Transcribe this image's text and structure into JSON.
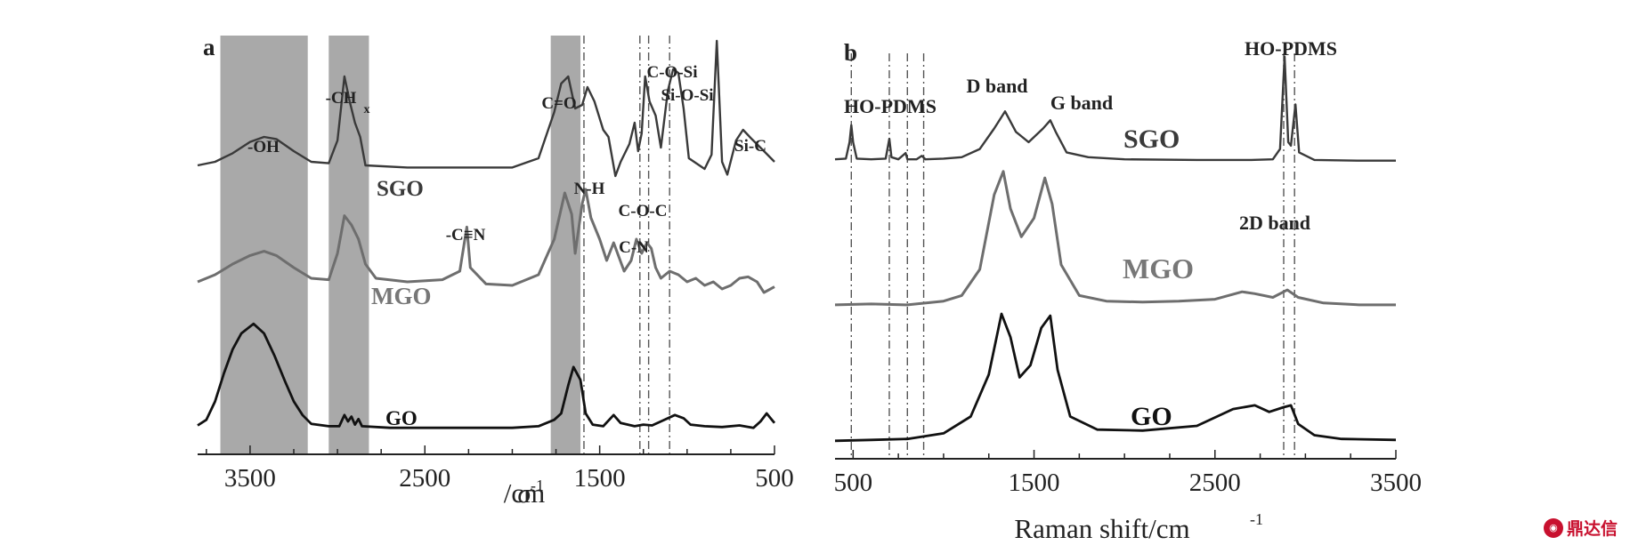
{
  "watermark": {
    "text": "鼎达信",
    "color": "#c8102e"
  },
  "chart_data": [
    {
      "type": "line",
      "panel_label": "a",
      "xlabel_main": "σ",
      "xlabel_unit": "/cm",
      "xlabel_sup": "-1",
      "xlim": [
        3800,
        500
      ],
      "x_reversed": true,
      "xticks": [
        3500,
        2500,
        1500,
        500
      ],
      "y_axis_visible": false,
      "shaded_bands": [
        [
          3670,
          3170
        ],
        [
          3050,
          2820
        ],
        [
          1780,
          1610
        ]
      ],
      "dashed_lines": [
        1590,
        1270,
        1220,
        1100
      ],
      "annotations": [
        "-OH",
        "-CH",
        "x",
        "C=O",
        "-C≡N",
        "N-H",
        "C-O-Si",
        "Si-O-Si",
        "C-O-C",
        "C-N",
        "Si-C"
      ],
      "series": [
        {
          "name": "SGO",
          "color": "#3a3a3a",
          "points": [
            [
              3800,
              0.45
            ],
            [
              3700,
              0.5
            ],
            [
              3600,
              0.62
            ],
            [
              3500,
              0.78
            ],
            [
              3420,
              0.85
            ],
            [
              3350,
              0.82
            ],
            [
              3250,
              0.65
            ],
            [
              3150,
              0.5
            ],
            [
              3050,
              0.48
            ],
            [
              3000,
              0.8
            ],
            [
              2960,
              1.7
            ],
            [
              2930,
              1.35
            ],
            [
              2900,
              1.05
            ],
            [
              2870,
              0.85
            ],
            [
              2840,
              0.45
            ],
            [
              2600,
              0.42
            ],
            [
              2300,
              0.42
            ],
            [
              2000,
              0.42
            ],
            [
              1850,
              0.55
            ],
            [
              1760,
              1.2
            ],
            [
              1720,
              1.6
            ],
            [
              1680,
              1.7
            ],
            [
              1640,
              1.25
            ],
            [
              1600,
              1.3
            ],
            [
              1570,
              1.55
            ],
            [
              1530,
              1.35
            ],
            [
              1480,
              0.95
            ],
            [
              1450,
              0.85
            ],
            [
              1410,
              0.3
            ],
            [
              1380,
              0.5
            ],
            [
              1330,
              0.75
            ],
            [
              1300,
              1.05
            ],
            [
              1280,
              0.65
            ],
            [
              1260,
              0.9
            ],
            [
              1240,
              1.7
            ],
            [
              1215,
              1.35
            ],
            [
              1180,
              1.15
            ],
            [
              1150,
              0.7
            ],
            [
              1110,
              1.5
            ],
            [
              1080,
              1.8
            ],
            [
              1050,
              1.75
            ],
            [
              1020,
              1.25
            ],
            [
              990,
              0.55
            ],
            [
              960,
              0.5
            ],
            [
              900,
              0.4
            ],
            [
              860,
              0.6
            ],
            [
              830,
              2.2
            ],
            [
              800,
              0.5
            ],
            [
              770,
              0.32
            ],
            [
              720,
              0.8
            ],
            [
              680,
              0.95
            ],
            [
              630,
              0.82
            ],
            [
              560,
              0.65
            ],
            [
              500,
              0.5
            ]
          ]
        },
        {
          "name": "MGO",
          "color": "#6e6e6e",
          "points": [
            [
              3800,
              0.35
            ],
            [
              3700,
              0.45
            ],
            [
              3600,
              0.6
            ],
            [
              3500,
              0.72
            ],
            [
              3420,
              0.78
            ],
            [
              3350,
              0.72
            ],
            [
              3250,
              0.55
            ],
            [
              3150,
              0.4
            ],
            [
              3050,
              0.38
            ],
            [
              3000,
              0.75
            ],
            [
              2960,
              1.28
            ],
            [
              2920,
              1.15
            ],
            [
              2880,
              0.95
            ],
            [
              2840,
              0.6
            ],
            [
              2780,
              0.4
            ],
            [
              2600,
              0.35
            ],
            [
              2400,
              0.38
            ],
            [
              2300,
              0.5
            ],
            [
              2260,
              1.12
            ],
            [
              2240,
              0.55
            ],
            [
              2150,
              0.32
            ],
            [
              2000,
              0.3
            ],
            [
              1850,
              0.45
            ],
            [
              1760,
              0.95
            ],
            [
              1700,
              1.6
            ],
            [
              1660,
              1.3
            ],
            [
              1640,
              0.75
            ],
            [
              1600,
              1.45
            ],
            [
              1580,
              1.65
            ],
            [
              1550,
              1.25
            ],
            [
              1500,
              0.95
            ],
            [
              1460,
              0.65
            ],
            [
              1420,
              0.9
            ],
            [
              1360,
              0.5
            ],
            [
              1320,
              0.65
            ],
            [
              1290,
              0.95
            ],
            [
              1260,
              0.75
            ],
            [
              1230,
              0.9
            ],
            [
              1205,
              0.82
            ],
            [
              1180,
              0.55
            ],
            [
              1150,
              0.4
            ],
            [
              1100,
              0.5
            ],
            [
              1050,
              0.45
            ],
            [
              1000,
              0.35
            ],
            [
              950,
              0.4
            ],
            [
              900,
              0.3
            ],
            [
              850,
              0.35
            ],
            [
              800,
              0.25
            ],
            [
              750,
              0.3
            ],
            [
              700,
              0.4
            ],
            [
              650,
              0.42
            ],
            [
              600,
              0.35
            ],
            [
              560,
              0.2
            ],
            [
              500,
              0.28
            ]
          ]
        },
        {
          "name": "GO",
          "color": "#111111",
          "points": [
            [
              3800,
              0.05
            ],
            [
              3750,
              0.12
            ],
            [
              3700,
              0.35
            ],
            [
              3650,
              0.7
            ],
            [
              3600,
              1.0
            ],
            [
              3550,
              1.2
            ],
            [
              3480,
              1.32
            ],
            [
              3420,
              1.2
            ],
            [
              3360,
              0.92
            ],
            [
              3300,
              0.6
            ],
            [
              3250,
              0.35
            ],
            [
              3200,
              0.18
            ],
            [
              3150,
              0.07
            ],
            [
              3050,
              0.04
            ],
            [
              2990,
              0.04
            ],
            [
              2960,
              0.18
            ],
            [
              2940,
              0.1
            ],
            [
              2920,
              0.16
            ],
            [
              2900,
              0.06
            ],
            [
              2880,
              0.13
            ],
            [
              2860,
              0.04
            ],
            [
              2700,
              0.02
            ],
            [
              2400,
              0.02
            ],
            [
              2000,
              0.02
            ],
            [
              1850,
              0.04
            ],
            [
              1760,
              0.12
            ],
            [
              1720,
              0.2
            ],
            [
              1680,
              0.55
            ],
            [
              1650,
              0.78
            ],
            [
              1610,
              0.62
            ],
            [
              1580,
              0.2
            ],
            [
              1540,
              0.06
            ],
            [
              1480,
              0.04
            ],
            [
              1420,
              0.18
            ],
            [
              1380,
              0.08
            ],
            [
              1300,
              0.04
            ],
            [
              1250,
              0.06
            ],
            [
              1200,
              0.05
            ],
            [
              1150,
              0.1
            ],
            [
              1070,
              0.18
            ],
            [
              1020,
              0.14
            ],
            [
              980,
              0.06
            ],
            [
              900,
              0.04
            ],
            [
              800,
              0.03
            ],
            [
              700,
              0.05
            ],
            [
              620,
              0.02
            ],
            [
              580,
              0.1
            ],
            [
              545,
              0.2
            ],
            [
              515,
              0.12
            ],
            [
              500,
              0.08
            ]
          ]
        }
      ]
    },
    {
      "type": "line",
      "panel_label": "b",
      "xlabel": "Raman shift/cm",
      "xlabel_sup": "-1",
      "xlim": [
        400,
        3500
      ],
      "xticks": [
        500,
        1500,
        2500,
        3500
      ],
      "y_axis_visible": false,
      "dashed_lines": [
        490,
        700,
        800,
        890,
        2880,
        2940
      ],
      "annotations": [
        "HO-PDMS",
        "D band",
        "G band",
        "HO-PDMS",
        "2D band"
      ],
      "series": [
        {
          "name": "SGO",
          "color": "#3a3a3a",
          "points": [
            [
              400,
              0.05
            ],
            [
              460,
              0.06
            ],
            [
              480,
              0.3
            ],
            [
              490,
              0.55
            ],
            [
              500,
              0.3
            ],
            [
              520,
              0.06
            ],
            [
              600,
              0.05
            ],
            [
              680,
              0.06
            ],
            [
              700,
              0.35
            ],
            [
              712,
              0.08
            ],
            [
              750,
              0.05
            ],
            [
              790,
              0.14
            ],
            [
              800,
              0.05
            ],
            [
              850,
              0.05
            ],
            [
              880,
              0.1
            ],
            [
              900,
              0.05
            ],
            [
              1000,
              0.06
            ],
            [
              1100,
              0.08
            ],
            [
              1200,
              0.2
            ],
            [
              1280,
              0.5
            ],
            [
              1340,
              0.75
            ],
            [
              1400,
              0.45
            ],
            [
              1470,
              0.3
            ],
            [
              1550,
              0.5
            ],
            [
              1590,
              0.62
            ],
            [
              1620,
              0.45
            ],
            [
              1680,
              0.15
            ],
            [
              1800,
              0.08
            ],
            [
              2000,
              0.05
            ],
            [
              2400,
              0.04
            ],
            [
              2700,
              0.04
            ],
            [
              2820,
              0.05
            ],
            [
              2860,
              0.2
            ],
            [
              2885,
              1.55
            ],
            [
              2905,
              0.3
            ],
            [
              2920,
              0.25
            ],
            [
              2945,
              0.85
            ],
            [
              2965,
              0.15
            ],
            [
              3050,
              0.04
            ],
            [
              3300,
              0.03
            ],
            [
              3500,
              0.03
            ]
          ]
        },
        {
          "name": "MGO",
          "color": "#6e6e6e",
          "points": [
            [
              400,
              0.02
            ],
            [
              600,
              0.03
            ],
            [
              800,
              0.02
            ],
            [
              1000,
              0.06
            ],
            [
              1100,
              0.12
            ],
            [
              1200,
              0.4
            ],
            [
              1280,
              1.2
            ],
            [
              1330,
              1.45
            ],
            [
              1370,
              1.05
            ],
            [
              1430,
              0.75
            ],
            [
              1500,
              0.95
            ],
            [
              1560,
              1.38
            ],
            [
              1600,
              1.1
            ],
            [
              1650,
              0.45
            ],
            [
              1750,
              0.12
            ],
            [
              1900,
              0.06
            ],
            [
              2100,
              0.05
            ],
            [
              2300,
              0.06
            ],
            [
              2500,
              0.08
            ],
            [
              2650,
              0.16
            ],
            [
              2720,
              0.14
            ],
            [
              2820,
              0.1
            ],
            [
              2900,
              0.18
            ],
            [
              2960,
              0.1
            ],
            [
              3100,
              0.04
            ],
            [
              3300,
              0.02
            ],
            [
              3500,
              0.02
            ]
          ]
        },
        {
          "name": "GO",
          "color": "#111111",
          "points": [
            [
              400,
              0.04
            ],
            [
              600,
              0.05
            ],
            [
              800,
              0.06
            ],
            [
              1000,
              0.12
            ],
            [
              1150,
              0.3
            ],
            [
              1250,
              0.75
            ],
            [
              1320,
              1.4
            ],
            [
              1370,
              1.15
            ],
            [
              1420,
              0.72
            ],
            [
              1480,
              0.85
            ],
            [
              1540,
              1.25
            ],
            [
              1590,
              1.38
            ],
            [
              1630,
              0.8
            ],
            [
              1700,
              0.3
            ],
            [
              1850,
              0.16
            ],
            [
              2100,
              0.15
            ],
            [
              2400,
              0.2
            ],
            [
              2600,
              0.38
            ],
            [
              2720,
              0.42
            ],
            [
              2800,
              0.35
            ],
            [
              2880,
              0.4
            ],
            [
              2920,
              0.42
            ],
            [
              2960,
              0.22
            ],
            [
              3050,
              0.1
            ],
            [
              3200,
              0.06
            ],
            [
              3500,
              0.05
            ]
          ]
        }
      ]
    }
  ]
}
